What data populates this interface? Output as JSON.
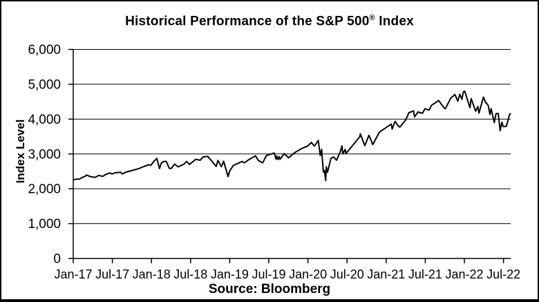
{
  "colors": {
    "line": "#000000",
    "grid": "#000000",
    "text": "#000000",
    "background": "#ffffff",
    "border": "#000000"
  },
  "chart_data": {
    "type": "line",
    "title": "Historical Performance of the S&P 500® Index",
    "title_parts": {
      "before": "Historical Performance of the S&P 500",
      "symbol": "®",
      "after": " Index"
    },
    "source": "Source: Bloomberg",
    "ylabel": "Index Level",
    "xlabel": "",
    "ylim": [
      0,
      6000
    ],
    "ytick_step": 1000,
    "ytick_labels": [
      "0",
      "1,000",
      "2,000",
      "3,000",
      "4,000",
      "5,000",
      "6,000"
    ],
    "xtick_labels": [
      "Jan-17",
      "Jul-17",
      "Jan-18",
      "Jul-18",
      "Jan-19",
      "Jul-19",
      "Jan-20",
      "Jul-20",
      "Jan-21",
      "Jul-21",
      "Jan-22",
      "Jul-22"
    ],
    "xtick_month_positions": [
      0,
      6,
      12,
      18,
      24,
      30,
      36,
      42,
      48,
      54,
      60,
      66
    ],
    "x_range_months": [
      0,
      67.1
    ],
    "grid": "horizontal",
    "legend": "none",
    "line_color": "#000000",
    "background": "#ffffff",
    "series": [
      {
        "name": "S&P 500 Index Level",
        "points": [
          [
            "2017-01-03",
            2258
          ],
          [
            "2017-01-13",
            2275
          ],
          [
            "2017-01-31",
            2279
          ],
          [
            "2017-02-10",
            2316
          ],
          [
            "2017-02-28",
            2364
          ],
          [
            "2017-03-01",
            2396
          ],
          [
            "2017-03-14",
            2365
          ],
          [
            "2017-03-27",
            2341
          ],
          [
            "2017-04-13",
            2329
          ],
          [
            "2017-04-28",
            2384
          ],
          [
            "2017-05-17",
            2357
          ],
          [
            "2017-05-31",
            2412
          ],
          [
            "2017-06-19",
            2453
          ],
          [
            "2017-06-30",
            2423
          ],
          [
            "2017-07-14",
            2459
          ],
          [
            "2017-07-31",
            2470
          ],
          [
            "2017-08-08",
            2475
          ],
          [
            "2017-08-18",
            2426
          ],
          [
            "2017-08-31",
            2472
          ],
          [
            "2017-09-29",
            2519
          ],
          [
            "2017-10-31",
            2575
          ],
          [
            "2017-11-30",
            2648
          ],
          [
            "2017-12-18",
            2690
          ],
          [
            "2017-12-29",
            2674
          ],
          [
            "2018-01-12",
            2786
          ],
          [
            "2018-01-26",
            2873
          ],
          [
            "2018-02-08",
            2581
          ],
          [
            "2018-02-16",
            2732
          ],
          [
            "2018-02-26",
            2780
          ],
          [
            "2018-03-09",
            2787
          ],
          [
            "2018-03-23",
            2588
          ],
          [
            "2018-04-02",
            2582
          ],
          [
            "2018-04-18",
            2708
          ],
          [
            "2018-05-03",
            2630
          ],
          [
            "2018-05-31",
            2705
          ],
          [
            "2018-06-12",
            2786
          ],
          [
            "2018-06-27",
            2700
          ],
          [
            "2018-07-25",
            2846
          ],
          [
            "2018-08-15",
            2818
          ],
          [
            "2018-08-29",
            2914
          ],
          [
            "2018-09-20",
            2931
          ],
          [
            "2018-10-10",
            2786
          ],
          [
            "2018-10-29",
            2641
          ],
          [
            "2018-11-07",
            2814
          ],
          [
            "2018-11-23",
            2633
          ],
          [
            "2018-12-03",
            2790
          ],
          [
            "2018-12-24",
            2351
          ],
          [
            "2018-12-31",
            2507
          ],
          [
            "2019-01-18",
            2671
          ],
          [
            "2019-01-31",
            2704
          ],
          [
            "2019-02-28",
            2784
          ],
          [
            "2019-03-08",
            2743
          ],
          [
            "2019-03-29",
            2834
          ],
          [
            "2019-04-30",
            2946
          ],
          [
            "2019-05-13",
            2812
          ],
          [
            "2019-05-31",
            2752
          ],
          [
            "2019-06-03",
            2745
          ],
          [
            "2019-06-20",
            2954
          ],
          [
            "2019-07-26",
            3026
          ],
          [
            "2019-08-05",
            2845
          ],
          [
            "2019-08-08",
            2938
          ],
          [
            "2019-08-14",
            2841
          ],
          [
            "2019-08-19",
            2924
          ],
          [
            "2019-08-23",
            2847
          ],
          [
            "2019-09-12",
            3010
          ],
          [
            "2019-10-02",
            2888
          ],
          [
            "2019-10-31",
            3038
          ],
          [
            "2019-11-29",
            3141
          ],
          [
            "2019-12-31",
            3231
          ],
          [
            "2020-01-17",
            3330
          ],
          [
            "2020-01-31",
            3226
          ],
          [
            "2020-02-19",
            3386
          ],
          [
            "2020-02-28",
            2954
          ],
          [
            "2020-03-04",
            3130
          ],
          [
            "2020-03-12",
            2481
          ],
          [
            "2020-03-17",
            2529
          ],
          [
            "2020-03-23",
            2237
          ],
          [
            "2020-03-26",
            2630
          ],
          [
            "2020-04-01",
            2471
          ],
          [
            "2020-04-17",
            2875
          ],
          [
            "2020-04-30",
            2912
          ],
          [
            "2020-05-13",
            2820
          ],
          [
            "2020-05-29",
            3044
          ],
          [
            "2020-06-08",
            3232
          ],
          [
            "2020-06-11",
            3002
          ],
          [
            "2020-06-23",
            3131
          ],
          [
            "2020-06-26",
            3009
          ],
          [
            "2020-07-31",
            3271
          ],
          [
            "2020-08-31",
            3500
          ],
          [
            "2020-09-02",
            3581
          ],
          [
            "2020-09-23",
            3237
          ],
          [
            "2020-10-12",
            3534
          ],
          [
            "2020-10-30",
            3270
          ],
          [
            "2020-11-30",
            3622
          ],
          [
            "2020-12-31",
            3756
          ],
          [
            "2021-01-25",
            3855
          ],
          [
            "2021-01-29",
            3714
          ],
          [
            "2021-02-12",
            3935
          ],
          [
            "2021-02-26",
            3811
          ],
          [
            "2021-03-04",
            3768
          ],
          [
            "2021-03-31",
            3973
          ],
          [
            "2021-04-16",
            4185
          ],
          [
            "2021-05-07",
            4233
          ],
          [
            "2021-05-12",
            4063
          ],
          [
            "2021-05-28",
            4204
          ],
          [
            "2021-06-18",
            4166
          ],
          [
            "2021-06-30",
            4298
          ],
          [
            "2021-07-19",
            4258
          ],
          [
            "2021-07-30",
            4395
          ],
          [
            "2021-08-31",
            4523
          ],
          [
            "2021-09-02",
            4537
          ],
          [
            "2021-09-30",
            4308
          ],
          [
            "2021-10-04",
            4300
          ],
          [
            "2021-10-29",
            4605
          ],
          [
            "2021-11-18",
            4705
          ],
          [
            "2021-12-01",
            4513
          ],
          [
            "2021-12-10",
            4712
          ],
          [
            "2021-12-20",
            4568
          ],
          [
            "2021-12-27",
            4791
          ],
          [
            "2022-01-03",
            4797
          ],
          [
            "2022-01-27",
            4327
          ],
          [
            "2022-02-02",
            4589
          ],
          [
            "2022-02-23",
            4226
          ],
          [
            "2022-03-03",
            4363
          ],
          [
            "2022-03-08",
            4171
          ],
          [
            "2022-03-29",
            4632
          ],
          [
            "2022-04-08",
            4488
          ],
          [
            "2022-04-21",
            4394
          ],
          [
            "2022-04-29",
            4132
          ],
          [
            "2022-05-04",
            4300
          ],
          [
            "2022-05-19",
            3901
          ],
          [
            "2022-05-27",
            4158
          ],
          [
            "2022-06-07",
            4160
          ],
          [
            "2022-06-16",
            3667
          ],
          [
            "2022-06-24",
            3912
          ],
          [
            "2022-06-30",
            3785
          ],
          [
            "2022-07-14",
            3790
          ],
          [
            "2022-07-22",
            3962
          ],
          [
            "2022-07-29",
            4130
          ],
          [
            "2022-08-03",
            4155
          ]
        ]
      }
    ]
  }
}
